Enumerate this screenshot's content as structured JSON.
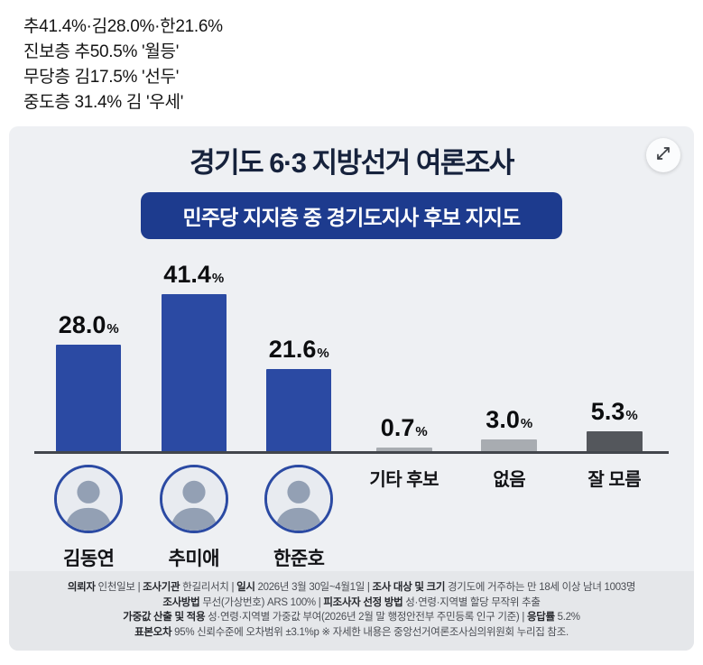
{
  "top_text": {
    "lines": [
      "추41.4%·김28.0%·한21.6%",
      "진보층 추50.5% '월등'",
      "무당층 김17.5% '선두'",
      "중도층 31.4% 김 '우세'"
    ]
  },
  "chart_data": {
    "type": "bar",
    "title": "경기도 6·3 지방선거 여론조사",
    "subtitle": "민주당 지지층 중 경기도지사 후보 지지도",
    "categories": [
      "김동연",
      "추미애",
      "한준호",
      "기타 후보",
      "없음",
      "잘 모름"
    ],
    "values": [
      28.0,
      41.4,
      21.6,
      0.7,
      3.0,
      5.3
    ],
    "unit": "%",
    "ylim": [
      0,
      45
    ],
    "grid": false,
    "legend_position": "none",
    "bar_colors": [
      "#2b4aa3",
      "#2b4aa3",
      "#2b4aa3",
      "#a8acb1",
      "#a8acb1",
      "#54575c"
    ],
    "has_photo": [
      true,
      true,
      true,
      false,
      false,
      false
    ]
  },
  "colors": {
    "card_bg": "#eef0f3",
    "banner_bg": "#1d3b8e",
    "bar_blue": "#2b4aa3",
    "bar_gray": "#a8acb1",
    "bar_dark_gray": "#54575c",
    "photo_ring": "#2b4aa3",
    "footer_bg": "#e5e7ea"
  },
  "icons": {
    "expand": "expand-arrows-icon"
  },
  "footer": {
    "lines": [
      [
        {
          "b": true,
          "t": "의뢰자"
        },
        {
          "b": false,
          "t": " 인천일보 | "
        },
        {
          "b": true,
          "t": "조사기관"
        },
        {
          "b": false,
          "t": " 한길리서치 | "
        },
        {
          "b": true,
          "t": "일시"
        },
        {
          "b": false,
          "t": " 2026년 3월 30일~4월1일 | "
        },
        {
          "b": true,
          "t": "조사 대상 및 크기"
        },
        {
          "b": false,
          "t": " 경기도에 거주하는 만 18세 이상 남녀 1003명"
        }
      ],
      [
        {
          "b": true,
          "t": "조사방법"
        },
        {
          "b": false,
          "t": " 무선(가상번호) ARS 100% | "
        },
        {
          "b": true,
          "t": "피조사자 선정 방법"
        },
        {
          "b": false,
          "t": " 성·연령·지역별 할당 무작위 추출"
        }
      ],
      [
        {
          "b": true,
          "t": "가중값 산출 및 적용"
        },
        {
          "b": false,
          "t": " 성·연령·지역별 가중값 부여(2026년 2월 말 행정안전부 주민등록 인구 기준) | "
        },
        {
          "b": true,
          "t": "응답률"
        },
        {
          "b": false,
          "t": " 5.2%"
        }
      ],
      [
        {
          "b": true,
          "t": "표본오차"
        },
        {
          "b": false,
          "t": " 95% 신뢰수준에 오차범위 ±3.1%p ※ 자세한 내용은 중앙선거여론조사심의위원회 누리집 참조."
        }
      ]
    ]
  }
}
